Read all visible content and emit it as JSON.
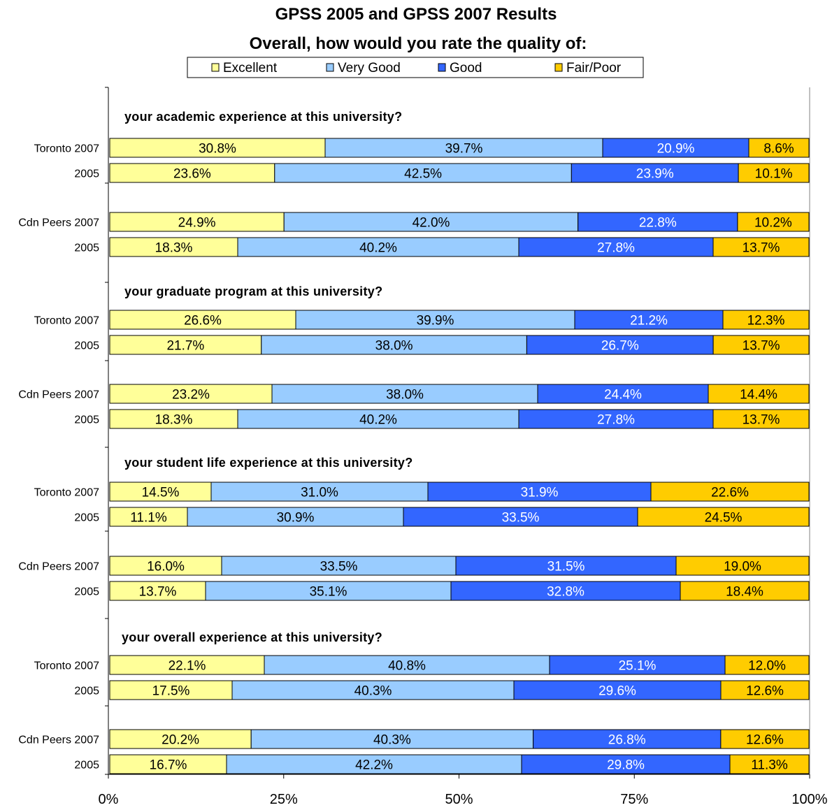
{
  "chart_data": {
    "type": "bar",
    "orientation": "horizontal-stacked-100",
    "title": "GPSS 2005 and GPSS 2007 Results",
    "subtitle": "Overall, how would you rate the quality of:",
    "legend_position": "top",
    "xlim": [
      0,
      100
    ],
    "x_ticks": [
      "0%",
      "25%",
      "50%",
      "75%",
      "100%"
    ],
    "series": [
      {
        "name": "Excellent",
        "color": "#FFFF99",
        "label_color": "#000000"
      },
      {
        "name": "Very Good",
        "color": "#99CCFF",
        "label_color": "#000000"
      },
      {
        "name": "Good",
        "color": "#3366FF",
        "label_color": "#FFFFFF"
      },
      {
        "name": "Fair/Poor",
        "color": "#FFCC00",
        "label_color": "#000000"
      }
    ],
    "groups": [
      {
        "title": "your academic experience at this university?",
        "rows": [
          {
            "label": "Toronto 2007",
            "values": [
              30.8,
              39.7,
              20.9,
              8.6
            ],
            "texts": [
              "30.8%",
              "39.7%",
              "20.9%",
              "8.6%"
            ]
          },
          {
            "label": "2005",
            "values": [
              23.6,
              42.5,
              23.9,
              10.1
            ],
            "texts": [
              "23.6%",
              "42.5%",
              "23.9%",
              "10.1%"
            ]
          },
          {
            "label": "Cdn Peers 2007",
            "values": [
              24.9,
              42.0,
              22.8,
              10.2
            ],
            "texts": [
              "24.9%",
              "42.0%",
              "22.8%",
              "10.2%"
            ]
          },
          {
            "label": "2005",
            "values": [
              18.3,
              40.2,
              27.8,
              13.7
            ],
            "texts": [
              "18.3%",
              "40.2%",
              "27.8%",
              "13.7%"
            ]
          }
        ]
      },
      {
        "title": "your graduate program at this university?",
        "rows": [
          {
            "label": "Toronto 2007",
            "values": [
              26.6,
              39.9,
              21.2,
              12.3
            ],
            "texts": [
              "26.6%",
              "39.9%",
              "21.2%",
              "12.3%"
            ]
          },
          {
            "label": "2005",
            "values": [
              21.7,
              38.0,
              26.7,
              13.7
            ],
            "texts": [
              "21.7%",
              "38.0%",
              "26.7%",
              "13.7%"
            ]
          },
          {
            "label": "Cdn Peers 2007",
            "values": [
              23.2,
              38.0,
              24.4,
              14.4
            ],
            "texts": [
              "23.2%",
              "38.0%",
              "24.4%",
              "14.4%"
            ]
          },
          {
            "label": "2005",
            "values": [
              18.3,
              40.2,
              27.8,
              13.7
            ],
            "texts": [
              "18.3%",
              "40.2%",
              "27.8%",
              "13.7%"
            ]
          }
        ]
      },
      {
        "title": "your student life experience at this university?",
        "rows": [
          {
            "label": "Toronto 2007",
            "values": [
              14.5,
              31.0,
              31.9,
              22.6
            ],
            "texts": [
              "14.5%",
              "31.0%",
              "31.9%",
              "22.6%"
            ]
          },
          {
            "label": "2005",
            "values": [
              11.1,
              30.9,
              33.5,
              24.5
            ],
            "texts": [
              "11.1%",
              "30.9%",
              "33.5%",
              "24.5%"
            ]
          },
          {
            "label": "Cdn Peers 2007",
            "values": [
              16.0,
              33.5,
              31.5,
              19.0
            ],
            "texts": [
              "16.0%",
              "33.5%",
              "31.5%",
              "19.0%"
            ]
          },
          {
            "label": "2005",
            "values": [
              13.7,
              35.1,
              32.8,
              18.4
            ],
            "texts": [
              "13.7%",
              "35.1%",
              "32.8%",
              "18.4%"
            ]
          }
        ]
      },
      {
        "title": "your overall experience at this university?",
        "rows": [
          {
            "label": "Toronto 2007",
            "values": [
              22.1,
              40.8,
              25.1,
              12.0
            ],
            "texts": [
              "22.1%",
              "40.8%",
              "25.1%",
              "12.0%"
            ]
          },
          {
            "label": "2005",
            "values": [
              17.5,
              40.3,
              29.6,
              12.6
            ],
            "texts": [
              "17.5%",
              "40.3%",
              "29.6%",
              "12.6%"
            ]
          },
          {
            "label": "Cdn Peers 2007",
            "values": [
              20.2,
              40.3,
              26.8,
              12.6
            ],
            "texts": [
              "20.2%",
              "40.3%",
              "26.8%",
              "12.6%"
            ]
          },
          {
            "label": "2005",
            "values": [
              16.7,
              42.2,
              29.8,
              11.3
            ],
            "texts": [
              "16.7%",
              "42.2%",
              "29.8%",
              "11.3%"
            ]
          }
        ]
      }
    ]
  }
}
